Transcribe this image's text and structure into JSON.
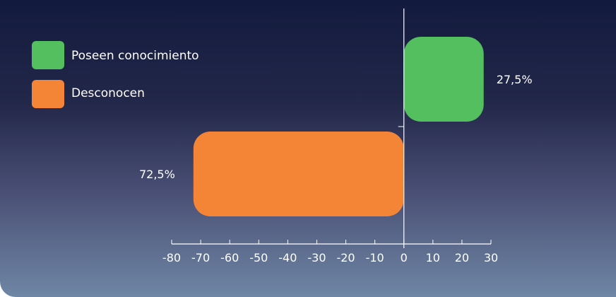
{
  "chart_data": {
    "type": "bar",
    "orientation": "horizontal",
    "categories": [
      "Poseen conocimiento",
      "Desconocen"
    ],
    "values": [
      27.5,
      -72.5
    ],
    "data_labels": [
      "27,5%",
      "72,5%"
    ],
    "xlim": [
      -80,
      30
    ],
    "xticks": [
      -80,
      -70,
      -60,
      -50,
      -40,
      -30,
      -20,
      -10,
      0,
      10,
      20,
      30
    ],
    "tick_labels": [
      "-80",
      "-70",
      "-60",
      "-50",
      "-40",
      "-30",
      "-20",
      "-10",
      "0",
      "10",
      "20",
      "30"
    ],
    "legend": {
      "placement": "top-left",
      "entries": [
        {
          "label": "Poseen conocimiento",
          "color": "#53bf5e"
        },
        {
          "label": "Desconocen",
          "color": "#f58536"
        }
      ]
    },
    "colors": [
      "#53bf5e",
      "#f58536"
    ],
    "grid": false
  }
}
